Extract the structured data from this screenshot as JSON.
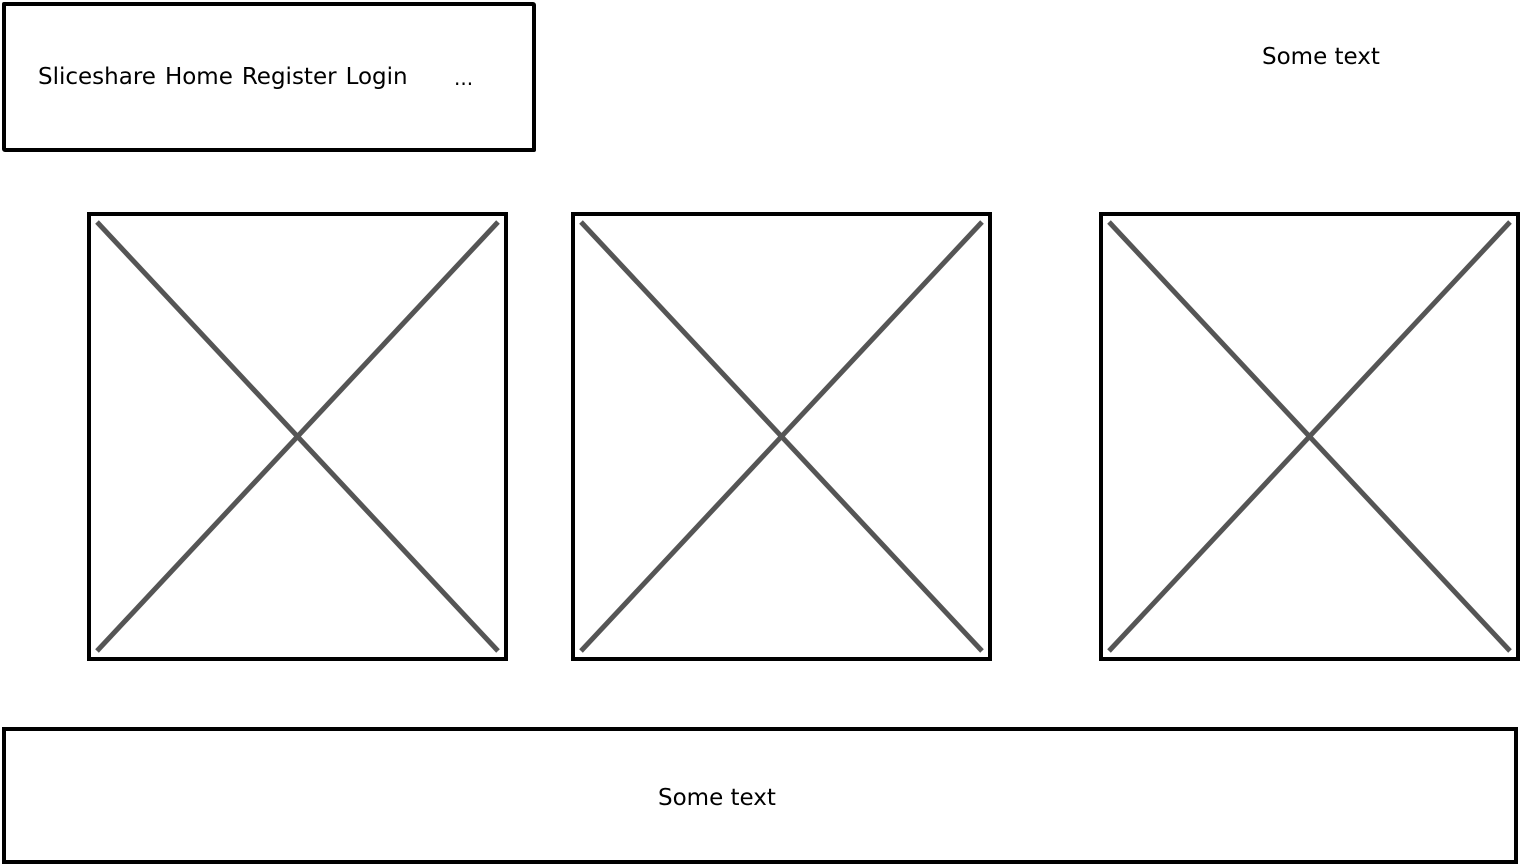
{
  "nav": {
    "items": [
      {
        "label": "Sliceshare"
      },
      {
        "label": "Home"
      },
      {
        "label": "Register"
      },
      {
        "label": "Login"
      }
    ],
    "ellipsis": "..."
  },
  "header": {
    "text": "Some text"
  },
  "images": [
    {
      "icon": "image-placeholder-icon"
    },
    {
      "icon": "image-placeholder-icon"
    },
    {
      "icon": "image-placeholder-icon"
    }
  ],
  "footer": {
    "text": "Some text"
  },
  "colors": {
    "stroke": "#000000",
    "placeholder_cross": "#555555",
    "background": "#ffffff"
  }
}
